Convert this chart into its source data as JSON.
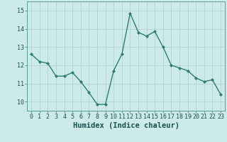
{
  "x": [
    0,
    1,
    2,
    3,
    4,
    5,
    6,
    7,
    8,
    9,
    10,
    11,
    12,
    13,
    14,
    15,
    16,
    17,
    18,
    19,
    20,
    21,
    22,
    23
  ],
  "y": [
    12.6,
    12.2,
    12.1,
    11.4,
    11.4,
    11.6,
    11.1,
    10.5,
    9.85,
    9.85,
    11.7,
    12.6,
    14.85,
    13.8,
    13.6,
    13.85,
    13.0,
    12.0,
    11.85,
    11.7,
    11.3,
    11.1,
    11.2,
    10.4
  ],
  "line_color": "#2e7d6e",
  "marker": "D",
  "marker_size": 2.0,
  "bg_color": "#cceae8",
  "grid_color": "#b0d4d2",
  "xlabel": "Humidex (Indice chaleur)",
  "ylim": [
    9.5,
    15.5
  ],
  "yticks": [
    10,
    11,
    12,
    13,
    14,
    15
  ],
  "xticks": [
    0,
    1,
    2,
    3,
    4,
    5,
    6,
    7,
    8,
    9,
    10,
    11,
    12,
    13,
    14,
    15,
    16,
    17,
    18,
    19,
    20,
    21,
    22,
    23
  ],
  "xtick_labels": [
    "0",
    "1",
    "2",
    "3",
    "4",
    "5",
    "6",
    "7",
    "8",
    "9",
    "10",
    "11",
    "12",
    "13",
    "14",
    "15",
    "16",
    "17",
    "18",
    "19",
    "20",
    "21",
    "22",
    "23"
  ],
  "xlabel_fontsize": 7.5,
  "tick_fontsize": 6.0,
  "line_width": 1.0,
  "spine_color": "#5a9a9a"
}
